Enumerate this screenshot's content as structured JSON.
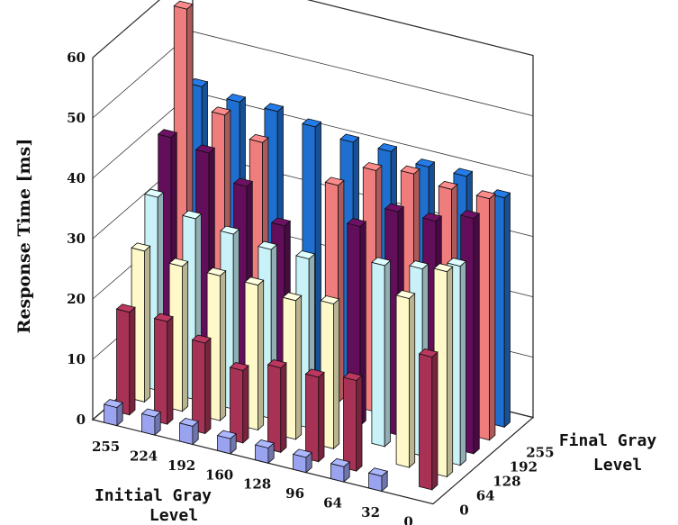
{
  "chart_data": {
    "type": "bar3d",
    "ylabel": "Response Time [ms]",
    "xlabel_line1": "Initial Gray",
    "xlabel_line2": "Level",
    "zlabel_line1": "Final Gray",
    "zlabel_line2": "Level",
    "y_ticks": [
      "0",
      "10",
      "20",
      "30",
      "40",
      "50",
      "60"
    ],
    "ylim": [
      0,
      60
    ],
    "initial_gray_levels": [
      "255",
      "224",
      "192",
      "160",
      "128",
      "96",
      "64",
      "32",
      "0"
    ],
    "final_gray_levels": [
      "0",
      "64",
      "128",
      "192",
      "255"
    ],
    "series": [
      {
        "final_gray": "0",
        "color": "#a83256",
        "values": [
          17,
          17,
          15,
          12,
          14,
          14,
          15,
          null,
          22
        ]
      },
      {
        "final_gray": "64",
        "color": "#fff8c8",
        "values": [
          25,
          24,
          24,
          24,
          23,
          24,
          null,
          28,
          34
        ]
      },
      {
        "final_gray": "128",
        "color": "#c8f2f8",
        "values": [
          32,
          30,
          29,
          28,
          28,
          null,
          30,
          31,
          33
        ]
      },
      {
        "final_gray": "192",
        "color": "#620e5a",
        "values": [
          40,
          39,
          35,
          30,
          null,
          33,
          37,
          37,
          39
        ]
      },
      {
        "final_gray": "255",
        "color": "#f07d7d",
        "values": [
          59,
          43,
          40,
          null,
          36,
          40,
          41,
          40,
          40
        ]
      }
    ],
    "back_row": {
      "color": "#1f6fd0",
      "values": [
        44,
        43,
        43,
        42,
        41,
        41,
        40,
        40,
        38
      ]
    },
    "diagonal_color": "#9aa3f0",
    "diagonal_values": [
      3,
      3,
      3,
      2.5,
      2.5,
      2.5,
      2.5,
      2.5
    ]
  }
}
